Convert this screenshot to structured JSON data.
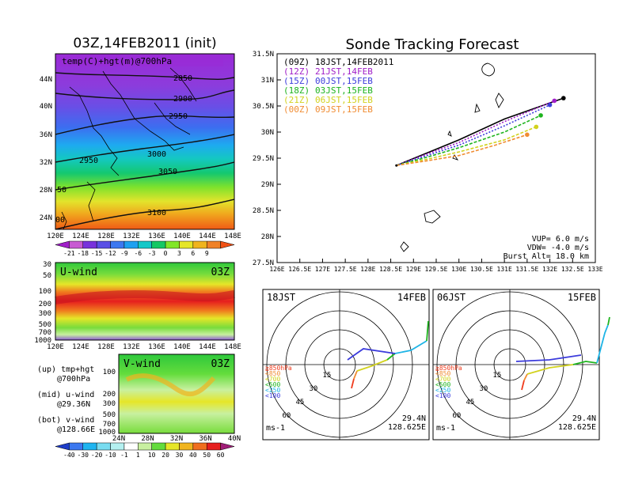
{
  "left_map": {
    "title": "03Z,14FEB2011 (init)",
    "panel_label": "temp(C)+hgt(m)@700hPa",
    "lat_labels": [
      "44N",
      "40N",
      "36N",
      "32N",
      "28N",
      "24N"
    ],
    "lon_labels": [
      "120E",
      "124E",
      "128E",
      "132E",
      "136E",
      "140E",
      "144E",
      "148E"
    ],
    "contour_labels": [
      "2850",
      "2900",
      "2950",
      "2950",
      "3000",
      "3050",
      "3100",
      "50",
      "00"
    ],
    "colorbar_labels": [
      "-21",
      "-18",
      "-15",
      "-12",
      "-9",
      "-6",
      "-3",
      "0",
      "3",
      "6",
      "9"
    ],
    "colorbar_colors": [
      "#a01ec8",
      "#c85ad2",
      "#7832dc",
      "#5a50e6",
      "#3c78f0",
      "#1ea0f0",
      "#14c8c8",
      "#14c864",
      "#82e628",
      "#e6e628",
      "#f0b41e",
      "#f08228",
      "#f05014"
    ]
  },
  "uwind": {
    "label": "U-wind",
    "time": "03Z",
    "y_labels": [
      "30",
      "50",
      "100",
      "200",
      "300",
      "500",
      "700",
      "1000"
    ],
    "x_labels": [
      "120E",
      "124E",
      "128E",
      "132E",
      "136E",
      "140E",
      "144E",
      "148E"
    ]
  },
  "vwind": {
    "label": "V-wind",
    "time": "03Z",
    "y_labels": [
      "100",
      "200",
      "300",
      "500",
      "700",
      "1000"
    ],
    "x_labels": [
      "24N",
      "28N",
      "32N",
      "36N",
      "40N"
    ],
    "colorbar_labels": [
      "-40",
      "-30",
      "-20",
      "-10",
      "-1",
      "1",
      "10",
      "20",
      "30",
      "40",
      "50",
      "60"
    ],
    "colorbar_colors": [
      "#1e3cc8",
      "#3c78f0",
      "#1eb4f0",
      "#78dcf0",
      "#b4f0f0",
      "#ffffff",
      "#c8f0a0",
      "#64dc3c",
      "#e6e628",
      "#f0b41e",
      "#f06e1e",
      "#e61e1e",
      "#a01e78"
    ]
  },
  "legend_notes": [
    {
      "a": "(up) tmp+hgt",
      "b": "@700hPa"
    },
    {
      "a": "(mid) u-wind",
      "b": "@29.36N"
    },
    {
      "a": "(bot) v-wind",
      "b": "@128.66E"
    }
  ],
  "track": {
    "title": "Sonde Tracking Forecast",
    "y_labels": [
      "31.5N",
      "31N",
      "30.5N",
      "30N",
      "29.5N",
      "29N",
      "28.5N",
      "28N",
      "27.5N"
    ],
    "x_labels": [
      "126E",
      "126.5E",
      "127E",
      "127.5E",
      "128E",
      "128.5E",
      "129E",
      "129.5E",
      "130E",
      "130.5E",
      "131E",
      "131.5E",
      "132E",
      "132.5E",
      "133E"
    ],
    "legend": [
      {
        "utc": "(09Z)",
        "text": "18JST,14FEB2011",
        "color": "#000000"
      },
      {
        "utc": "(12Z)",
        "text": "21JST,14FEB",
        "color": "#a01ec8"
      },
      {
        "utc": "(15Z)",
        "text": "00JST,15FEB",
        "color": "#3c3cdc"
      },
      {
        "utc": "(18Z)",
        "text": "03JST,15FEB",
        "color": "#1eb41e"
      },
      {
        "utc": "(21Z)",
        "text": "06JST,15FEB",
        "color": "#d2d21e"
      },
      {
        "utc": "(00Z)",
        "text": "09JST,15FEB",
        "color": "#f08c32"
      }
    ],
    "params": [
      "VUP=  6.0 m/s",
      "VDW= -4.0 m/s",
      "Burst Alt= 18.0 km"
    ]
  },
  "chart_data": {
    "type": "line",
    "title": "Sonde Tracking Forecast",
    "xlim": [
      126,
      133
    ],
    "ylim": [
      27.5,
      31.5
    ],
    "start": {
      "lon": 128.625,
      "lat": 29.36
    },
    "series": [
      {
        "name": "18JST,14FEB2011",
        "color": "#000000",
        "x": [
          128.625,
          129.3,
          130.0,
          131.0,
          132.3
        ],
        "y": [
          29.36,
          29.6,
          29.85,
          30.25,
          30.65
        ]
      },
      {
        "name": "21JST,14FEB",
        "color": "#a01ec8",
        "x": [
          128.625,
          129.3,
          130.0,
          131.0,
          132.1
        ],
        "y": [
          29.36,
          29.58,
          29.8,
          30.2,
          30.6
        ]
      },
      {
        "name": "00JST,15FEB",
        "color": "#3c3cdc",
        "x": [
          128.625,
          129.3,
          130.0,
          131.0,
          132.0
        ],
        "y": [
          29.36,
          29.55,
          29.75,
          30.12,
          30.52
        ]
      },
      {
        "name": "03JST,15FEB",
        "color": "#1eb41e",
        "x": [
          128.625,
          129.3,
          130.0,
          131.0,
          131.8
        ],
        "y": [
          29.36,
          29.52,
          29.7,
          30.0,
          30.32
        ]
      },
      {
        "name": "06JST,15FEB",
        "color": "#d2d21e",
        "x": [
          128.625,
          129.3,
          130.0,
          131.0,
          131.7
        ],
        "y": [
          29.36,
          29.48,
          29.62,
          29.85,
          30.1
        ]
      },
      {
        "name": "09JST,15FEB",
        "color": "#f08c32",
        "x": [
          128.625,
          129.3,
          130.0,
          130.8,
          131.5
        ],
        "y": [
          29.36,
          29.45,
          29.55,
          29.75,
          29.95
        ]
      }
    ]
  },
  "hodo_left": {
    "time": "18JST",
    "date": "14FEB",
    "lat": "29.4N",
    "lon": "128.625E",
    "unit": "ms-1",
    "rings": [
      "15",
      "30",
      "45",
      "60"
    ]
  },
  "hodo_right": {
    "time": "06JST",
    "date": "15FEB",
    "lat": "29.4N",
    "lon": "128.625E",
    "unit": "ms-1",
    "rings": [
      "15",
      "30",
      "45",
      "60"
    ]
  },
  "hodo_levels": [
    {
      "text": "≧850hPa",
      "color": "#f03c1e"
    },
    {
      "text": "<850",
      "color": "#f08c32"
    },
    {
      "text": "<700",
      "color": "#d2d21e"
    },
    {
      "text": "<500",
      "color": "#1eb41e"
    },
    {
      "text": "<250",
      "color": "#1eb4e6"
    },
    {
      "text": "<100",
      "color": "#3c3cdc"
    }
  ]
}
